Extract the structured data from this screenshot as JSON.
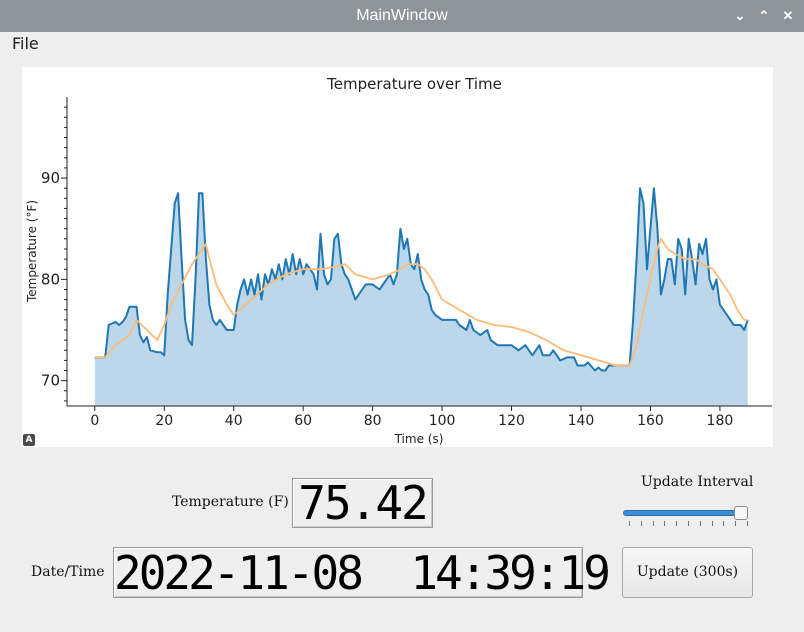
{
  "window": {
    "title": "MainWindow"
  },
  "menu": {
    "file": "File"
  },
  "chart_data": {
    "type": "area",
    "title": "Temperature over Time",
    "xlabel": "Time (s)",
    "ylabel": "Temperature (°F)",
    "xlim": [
      -8,
      195
    ],
    "ylim": [
      67.5,
      98
    ],
    "xticks": [
      0,
      20,
      40,
      60,
      80,
      100,
      120,
      140,
      160,
      180
    ],
    "yticks": [
      70,
      80,
      90
    ],
    "grid": false,
    "series": [
      {
        "values": [
          [
            0,
            72.3
          ],
          [
            3,
            72.3
          ],
          [
            4,
            75.5
          ],
          [
            6,
            75.8
          ],
          [
            7,
            75.5
          ],
          [
            8,
            75.8
          ],
          [
            9,
            76.3
          ],
          [
            10,
            77.3
          ],
          [
            12,
            77.3
          ],
          [
            13,
            74.5
          ],
          [
            14,
            73.8
          ],
          [
            15,
            74.3
          ],
          [
            16,
            73
          ],
          [
            18,
            72.8
          ],
          [
            19,
            72.8
          ],
          [
            20,
            72.5
          ],
          [
            21,
            78.5
          ],
          [
            22,
            83
          ],
          [
            23,
            87.5
          ],
          [
            24,
            88.5
          ],
          [
            25,
            82
          ],
          [
            26,
            76
          ],
          [
            27,
            74
          ],
          [
            28,
            73.5
          ],
          [
            29,
            80
          ],
          [
            30,
            88.5
          ],
          [
            31,
            88.5
          ],
          [
            32,
            82
          ],
          [
            33,
            77.5
          ],
          [
            34,
            76
          ],
          [
            35,
            75.5
          ],
          [
            36,
            76
          ],
          [
            38,
            75
          ],
          [
            40,
            75
          ],
          [
            41,
            77.5
          ],
          [
            42,
            79
          ],
          [
            43,
            80
          ],
          [
            44,
            78.5
          ],
          [
            45,
            80
          ],
          [
            46,
            78.5
          ],
          [
            47,
            80.5
          ],
          [
            48,
            78
          ],
          [
            49,
            80.5
          ],
          [
            50,
            79.5
          ],
          [
            51,
            81
          ],
          [
            52,
            80
          ],
          [
            53,
            81.5
          ],
          [
            54,
            80
          ],
          [
            55,
            82
          ],
          [
            56,
            80.5
          ],
          [
            57,
            82.5
          ],
          [
            58,
            80.5
          ],
          [
            59,
            82
          ],
          [
            60,
            80.5
          ],
          [
            61,
            81.5
          ],
          [
            63,
            80.5
          ],
          [
            64,
            79
          ],
          [
            65,
            84.5
          ],
          [
            66,
            80.5
          ],
          [
            67,
            79.5
          ],
          [
            68,
            80
          ],
          [
            69,
            84
          ],
          [
            70,
            84.5
          ],
          [
            71,
            81.5
          ],
          [
            72,
            80.5
          ],
          [
            73,
            80
          ],
          [
            74,
            79
          ],
          [
            75,
            78
          ],
          [
            76,
            78.5
          ],
          [
            78,
            79.5
          ],
          [
            80,
            79.5
          ],
          [
            82,
            79
          ],
          [
            84,
            80
          ],
          [
            85,
            80.5
          ],
          [
            86,
            79.5
          ],
          [
            87,
            80.5
          ],
          [
            88,
            85
          ],
          [
            89,
            83
          ],
          [
            90,
            84
          ],
          [
            91,
            81.5
          ],
          [
            92,
            81
          ],
          [
            93,
            82.5
          ],
          [
            94,
            80
          ],
          [
            95,
            79
          ],
          [
            96,
            78.5
          ],
          [
            97,
            77
          ],
          [
            98,
            76.5
          ],
          [
            100,
            76
          ],
          [
            104,
            76
          ],
          [
            105,
            75.5
          ],
          [
            107,
            75
          ],
          [
            108,
            76
          ],
          [
            109,
            75
          ],
          [
            111,
            74.5
          ],
          [
            113,
            75
          ],
          [
            114,
            74
          ],
          [
            116,
            73.5
          ],
          [
            120,
            73.5
          ],
          [
            122,
            73
          ],
          [
            124,
            73.5
          ],
          [
            126,
            72.5
          ],
          [
            128,
            73.5
          ],
          [
            129,
            72.5
          ],
          [
            131,
            72.5
          ],
          [
            132,
            73
          ],
          [
            134,
            72
          ],
          [
            136,
            72.3
          ],
          [
            138,
            72.3
          ],
          [
            139,
            71.5
          ],
          [
            141,
            71.5
          ],
          [
            142,
            71.8
          ],
          [
            144,
            71
          ],
          [
            145,
            71.3
          ],
          [
            146,
            71
          ],
          [
            147,
            71
          ],
          [
            148,
            71.5
          ],
          [
            154,
            71.5
          ],
          [
            155,
            76
          ],
          [
            156,
            82
          ],
          [
            157,
            89
          ],
          [
            158,
            87.5
          ],
          [
            159,
            81
          ],
          [
            160,
            85
          ],
          [
            161,
            89
          ],
          [
            162,
            85
          ],
          [
            163,
            78.5
          ],
          [
            164,
            80
          ],
          [
            165,
            82
          ],
          [
            166,
            82
          ],
          [
            167,
            79.5
          ],
          [
            168,
            84
          ],
          [
            169,
            83
          ],
          [
            170,
            78.5
          ],
          [
            171,
            84
          ],
          [
            172,
            82
          ],
          [
            173,
            79.5
          ],
          [
            174,
            83.5
          ],
          [
            175,
            82.5
          ],
          [
            176,
            84
          ],
          [
            177,
            80
          ],
          [
            178,
            79
          ],
          [
            179,
            80
          ],
          [
            180,
            77.5
          ],
          [
            181,
            77
          ],
          [
            182,
            76.5
          ],
          [
            183,
            76
          ],
          [
            184,
            75.5
          ],
          [
            186,
            75.5
          ],
          [
            187,
            75
          ],
          [
            188,
            76
          ]
        ],
        "color": "#1f77b4",
        "fill": "#bcd6ea"
      },
      {
        "values": [
          [
            0,
            72.3
          ],
          [
            3,
            72.3
          ],
          [
            6,
            73.5
          ],
          [
            10,
            74.5
          ],
          [
            12,
            76
          ],
          [
            15,
            75
          ],
          [
            18,
            74
          ],
          [
            20,
            75.5
          ],
          [
            22,
            77.5
          ],
          [
            25,
            79.5
          ],
          [
            28,
            81.5
          ],
          [
            30,
            82.5
          ],
          [
            32,
            83.5
          ],
          [
            33,
            82
          ],
          [
            35,
            79.5
          ],
          [
            38,
            77.5
          ],
          [
            40,
            76.5
          ],
          [
            42,
            77
          ],
          [
            45,
            78
          ],
          [
            50,
            79.5
          ],
          [
            55,
            80.5
          ],
          [
            60,
            81
          ],
          [
            65,
            81
          ],
          [
            70,
            81.3
          ],
          [
            72,
            81.5
          ],
          [
            75,
            80.5
          ],
          [
            80,
            80
          ],
          [
            85,
            80.5
          ],
          [
            88,
            81
          ],
          [
            90,
            81.5
          ],
          [
            93,
            81.5
          ],
          [
            95,
            81
          ],
          [
            97,
            80
          ],
          [
            100,
            78
          ],
          [
            105,
            77
          ],
          [
            110,
            76
          ],
          [
            115,
            75.5
          ],
          [
            120,
            75.3
          ],
          [
            125,
            74.8
          ],
          [
            130,
            74
          ],
          [
            135,
            73
          ],
          [
            140,
            72.5
          ],
          [
            145,
            72
          ],
          [
            150,
            71.5
          ],
          [
            154,
            71.5
          ],
          [
            156,
            73.5
          ],
          [
            158,
            77
          ],
          [
            160,
            80
          ],
          [
            162,
            83
          ],
          [
            163,
            84
          ],
          [
            165,
            83
          ],
          [
            167,
            82.5
          ],
          [
            170,
            82
          ],
          [
            173,
            82
          ],
          [
            175,
            81.5
          ],
          [
            178,
            81
          ],
          [
            180,
            80
          ],
          [
            183,
            78.5
          ],
          [
            185,
            77
          ],
          [
            187,
            76
          ],
          [
            188,
            76
          ]
        ],
        "color": "#ffbb78"
      }
    ]
  },
  "readouts": {
    "temperature_label": "Temperature (F)",
    "temperature_value": "75.42",
    "datetime_label": "Date/Time",
    "datetime_value": "2022-11-08  14:39:19"
  },
  "controls": {
    "interval_label": "Update Interval",
    "interval_level": 0.95,
    "update_button": "Update (300s)"
  },
  "icons": {
    "plot_autoscale": "A"
  }
}
